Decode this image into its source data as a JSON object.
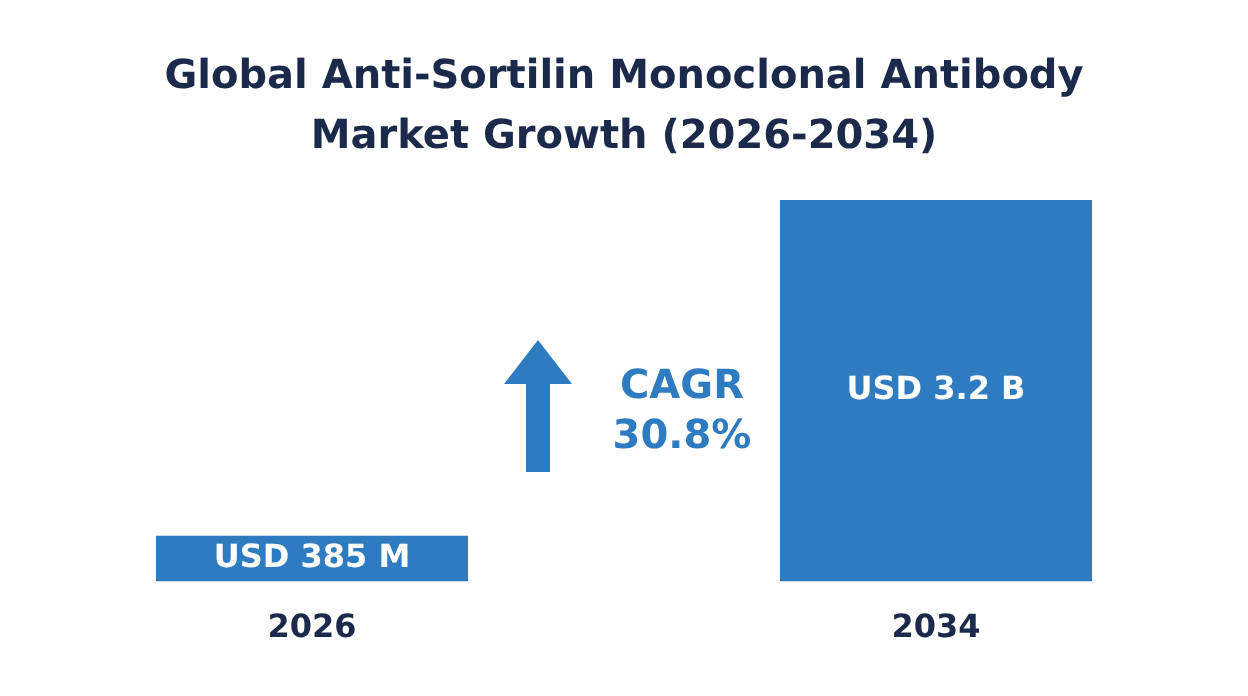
{
  "chart_data": {
    "type": "bar",
    "title": "Global Anti-Sortilin Monoclonal Antibody Market Growth (2026-2034)",
    "categories": [
      "2026",
      "2034"
    ],
    "values": [
      0.385,
      3.2
    ],
    "value_labels": [
      "USD 385 M",
      "USD 3.2 B"
    ],
    "color": "#2f7bbf",
    "annotations": [
      "CAGR 30.8%"
    ],
    "grid": false,
    "legend": false
  }
}
